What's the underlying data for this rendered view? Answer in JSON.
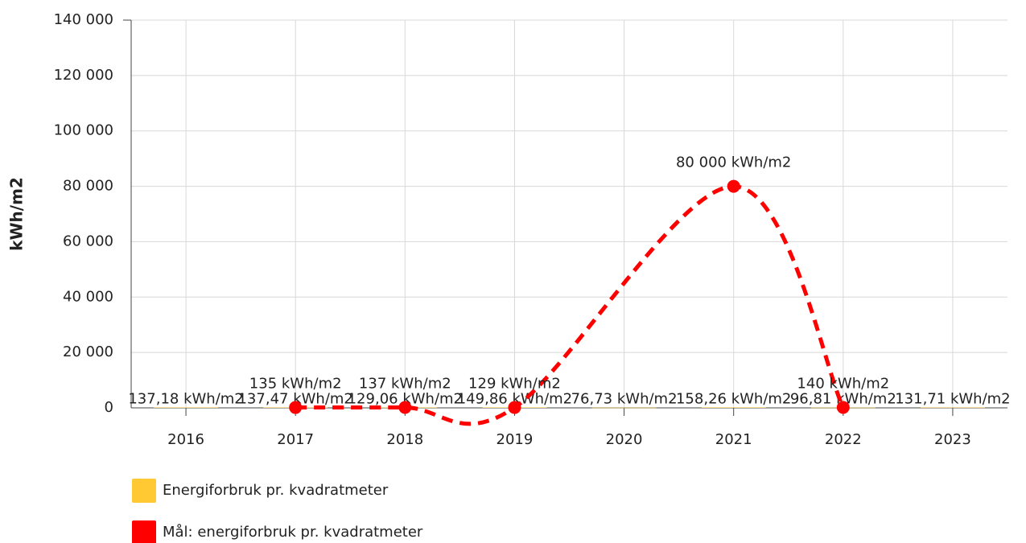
{
  "chart_data": {
    "type": "line",
    "ylabel": "kWh/m2",
    "xlim": [
      2015.5,
      2023.5
    ],
    "xticks": [
      2016,
      2017,
      2018,
      2019,
      2020,
      2021,
      2022,
      2023
    ],
    "ylim": [
      0,
      140000
    ],
    "yticks": [
      0,
      {
        "value": 20000,
        "label": "20 000"
      },
      {
        "value": 40000,
        "label": "40 000"
      },
      {
        "value": 60000,
        "label": "60 000"
      },
      {
        "value": 80000,
        "label": "80 000"
      },
      {
        "value": 100000,
        "label": "100 000"
      },
      {
        "value": 120000,
        "label": "120 000"
      },
      {
        "value": 140000,
        "label": "140 000"
      }
    ],
    "grid": true,
    "legend": "bottom",
    "series": [
      {
        "name": "Energiforbruk pr. kvadratmeter",
        "type": "bar",
        "color": "#ffc933",
        "x": [
          2016,
          2017,
          2018,
          2019,
          2020,
          2021,
          2022,
          2023
        ],
        "values": [
          137.18,
          137.47,
          129.06,
          149.86,
          76.73,
          158.26,
          96.81,
          131.71
        ],
        "value_labels": [
          "137,18 kWh/m2",
          "137,47 kWh/m2",
          "129,06 kWh/m2",
          "149,86 kWh/m2",
          "76,73 kWh/m2",
          "158,26 kWh/m2",
          "96,81 kWh/m2",
          "131,71 kWh/m2"
        ]
      },
      {
        "name": "Mål: energiforbruk pr. kvadratmeter",
        "type": "spline",
        "dashed": true,
        "color": "#ff0000",
        "x": [
          2017,
          2018,
          2019,
          2021,
          2022
        ],
        "values": [
          135,
          137,
          129,
          80000,
          140
        ],
        "value_labels": [
          "135 kWh/m2",
          "137 kWh/m2",
          "129 kWh/m2",
          "80 000 kWh/m2",
          "140 kWh/m2"
        ]
      }
    ]
  }
}
